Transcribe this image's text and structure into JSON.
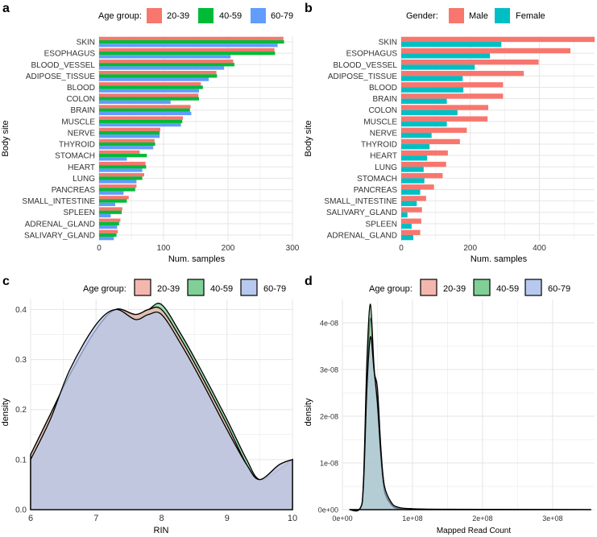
{
  "colors": {
    "age_20_39": "#F8766D",
    "age_40_59": "#00BA38",
    "age_60_79": "#619CFF",
    "male": "#F8766D",
    "female": "#00BFC4",
    "density_20_39": "#F4B7B0",
    "density_40_59": "#7FCF96",
    "density_60_79": "#B7C9EE",
    "density_overlap": "#6FA6AE",
    "grid": "#E5E5E5",
    "axis_text": "#333333"
  },
  "panels": {
    "a": {
      "letter": "a",
      "legend_title": "Age group:",
      "legend_items": [
        "20-39",
        "40-59",
        "60-79"
      ],
      "xlabel": "Num. samples",
      "ylabel": "Body site"
    },
    "b": {
      "letter": "b",
      "legend_title": "Gender:",
      "legend_items": [
        "Male",
        "Female"
      ],
      "xlabel": "Num. samples",
      "ylabel": "Body site"
    },
    "c": {
      "letter": "c",
      "legend_title": "Age group:",
      "legend_items": [
        "20-39",
        "40-59",
        "60-79"
      ],
      "xlabel": "RIN",
      "ylabel": "density"
    },
    "d": {
      "letter": "d",
      "legend_title": "Age group:",
      "legend_items": [
        "20-39",
        "40-59",
        "60-79"
      ],
      "xlabel": "Mapped Read Count",
      "ylabel": "density"
    }
  },
  "chart_data": [
    {
      "panel": "a",
      "type": "bar",
      "orientation": "horizontal",
      "title": "",
      "xlabel": "Num. samples",
      "ylabel": "Body site",
      "xlim": [
        0,
        300
      ],
      "xticks": [
        0,
        100,
        200,
        300
      ],
      "xtick_labels": [
        "0",
        "100",
        "200",
        "300"
      ],
      "categories": [
        "SKIN",
        "ESOPHAGUS",
        "BLOOD_VESSEL",
        "ADIPOSE_TISSUE",
        "BLOOD",
        "COLON",
        "BRAIN",
        "MUSCLE",
        "NERVE",
        "THYROID",
        "STOMACH",
        "HEART",
        "LUNG",
        "PANCREAS",
        "SMALL_INTESTINE",
        "SPLEEN",
        "ADRENAL_GLAND",
        "SALIVARY_GLAND"
      ],
      "series": [
        {
          "name": "20-39",
          "values": [
            286,
            272,
            208,
            182,
            158,
            154,
            142,
            130,
            95,
            86,
            63,
            72,
            70,
            58,
            46,
            36,
            33,
            29
          ]
        },
        {
          "name": "40-59",
          "values": [
            287,
            273,
            210,
            183,
            161,
            155,
            141,
            129,
            94,
            87,
            74,
            73,
            67,
            56,
            43,
            35,
            31,
            27
          ]
        },
        {
          "name": "60-79",
          "values": [
            277,
            204,
            194,
            170,
            155,
            111,
            143,
            127,
            94,
            84,
            43,
            67,
            58,
            38,
            25,
            18,
            28,
            23
          ]
        }
      ],
      "legend": {
        "title": "Age group:",
        "position": "top"
      }
    },
    {
      "panel": "b",
      "type": "bar",
      "orientation": "horizontal",
      "title": "",
      "xlabel": "Num. samples",
      "ylabel": "Body site",
      "xlim": [
        0,
        560
      ],
      "xticks": [
        0,
        200,
        400
      ],
      "xtick_labels": [
        "0",
        "200",
        "400"
      ],
      "categories": [
        "SKIN",
        "ESOPHAGUS",
        "BLOOD_VESSEL",
        "ADIPOSE_TISSUE",
        "BLOOD",
        "BRAIN",
        "COLON",
        "MUSCLE",
        "NERVE",
        "THYROID",
        "HEART",
        "LUNG",
        "STOMACH",
        "PANCREAS",
        "SMALL_INTESTINE",
        "SALIVARY_GLAND",
        "SPLEEN",
        "ADRENAL_GLAND"
      ],
      "series": [
        {
          "name": "Male",
          "values": [
            560,
            490,
            398,
            355,
            295,
            295,
            252,
            250,
            190,
            170,
            135,
            130,
            120,
            95,
            72,
            60,
            58,
            55
          ]
        },
        {
          "name": "Female",
          "values": [
            290,
            257,
            213,
            178,
            180,
            132,
            163,
            132,
            88,
            82,
            75,
            65,
            67,
            55,
            45,
            18,
            30,
            35
          ]
        }
      ],
      "legend": {
        "title": "Gender:",
        "position": "top"
      }
    },
    {
      "panel": "c",
      "type": "area",
      "subtype": "density",
      "title": "",
      "xlabel": "RIN",
      "ylabel": "density",
      "xlim": [
        6,
        10
      ],
      "ylim": [
        0,
        0.42
      ],
      "xticks": [
        6,
        7,
        8,
        9,
        10
      ],
      "xtick_labels": [
        "6",
        "7",
        "8",
        "9",
        "10"
      ],
      "yticks": [
        0.0,
        0.1,
        0.2,
        0.3,
        0.4
      ],
      "ytick_labels": [
        "0.0",
        "0.1",
        "0.2",
        "0.3",
        "0.4"
      ],
      "series": [
        {
          "name": "20-39",
          "x": [
            6.0,
            6.3,
            6.6,
            7.0,
            7.3,
            7.6,
            7.8,
            8.0,
            8.3,
            8.6,
            9.0,
            9.3,
            9.5,
            9.8,
            10.0
          ],
          "y": [
            0.11,
            0.19,
            0.27,
            0.36,
            0.4,
            0.39,
            0.4,
            0.4,
            0.34,
            0.27,
            0.17,
            0.09,
            0.06,
            0.09,
            0.1
          ]
        },
        {
          "name": "40-59",
          "x": [
            6.0,
            6.3,
            6.6,
            7.0,
            7.3,
            7.6,
            7.8,
            8.0,
            8.3,
            8.6,
            9.0,
            9.3,
            9.5,
            9.8,
            10.0
          ],
          "y": [
            0.11,
            0.19,
            0.27,
            0.36,
            0.4,
            0.39,
            0.4,
            0.41,
            0.35,
            0.28,
            0.18,
            0.1,
            0.06,
            0.08,
            0.1
          ]
        },
        {
          "name": "60-79",
          "x": [
            6.0,
            6.3,
            6.6,
            7.0,
            7.3,
            7.6,
            7.8,
            8.0,
            8.3,
            8.6,
            9.0,
            9.3,
            9.5,
            9.8,
            10.0
          ],
          "y": [
            0.1,
            0.18,
            0.28,
            0.37,
            0.4,
            0.38,
            0.39,
            0.39,
            0.33,
            0.26,
            0.16,
            0.09,
            0.06,
            0.09,
            0.1
          ]
        }
      ],
      "legend": {
        "title": "Age group:",
        "position": "top"
      }
    },
    {
      "panel": "d",
      "type": "area",
      "subtype": "density",
      "title": "",
      "xlabel": "Mapped Read Count",
      "ylabel": "density",
      "xlim": [
        0,
        360000000
      ],
      "ylim": [
        0,
        4.5e-08
      ],
      "xticks": [
        0,
        100000000,
        200000000,
        300000000
      ],
      "xtick_labels": [
        "0e+00",
        "1e+08",
        "2e+08",
        "3e+08"
      ],
      "yticks": [
        0,
        1e-08,
        2e-08,
        3e-08,
        4e-08
      ],
      "ytick_labels": [
        "0e+00",
        "1e-08",
        "2e-08",
        "3e-08",
        "4e-08"
      ],
      "series": [
        {
          "name": "20-39",
          "x": [
            10000000,
            25000000,
            30000000,
            35000000,
            40000000,
            45000000,
            50000000,
            55000000,
            60000000,
            70000000,
            80000000,
            100000000,
            150000000,
            355000000
          ],
          "y": [
            0,
            2e-10,
            5e-09,
            2.8e-08,
            4.1e-08,
            3e-08,
            2.6e-08,
            1.3e-08,
            5e-09,
            1.2e-09,
            3e-10,
            1e-10,
            5e-11,
            0
          ]
        },
        {
          "name": "40-59",
          "x": [
            10000000,
            25000000,
            30000000,
            35000000,
            40000000,
            45000000,
            50000000,
            55000000,
            60000000,
            70000000,
            80000000,
            100000000,
            150000000,
            355000000
          ],
          "y": [
            0,
            2e-10,
            6e-09,
            3.2e-08,
            4.4e-08,
            3.1e-08,
            2.2e-08,
            1.1e-08,
            4e-09,
            1e-09,
            2e-10,
            1e-10,
            5e-11,
            0
          ]
        },
        {
          "name": "60-79",
          "x": [
            10000000,
            25000000,
            30000000,
            35000000,
            40000000,
            45000000,
            50000000,
            55000000,
            60000000,
            70000000,
            80000000,
            100000000,
            150000000,
            355000000
          ],
          "y": [
            0,
            2e-10,
            5e-09,
            2.6e-08,
            3.7e-08,
            3e-08,
            2.3e-08,
            1.2e-08,
            5e-09,
            1.5e-09,
            5e-10,
            2e-10,
            8e-11,
            0
          ]
        }
      ],
      "legend": {
        "title": "Age group:",
        "position": "top"
      }
    }
  ]
}
